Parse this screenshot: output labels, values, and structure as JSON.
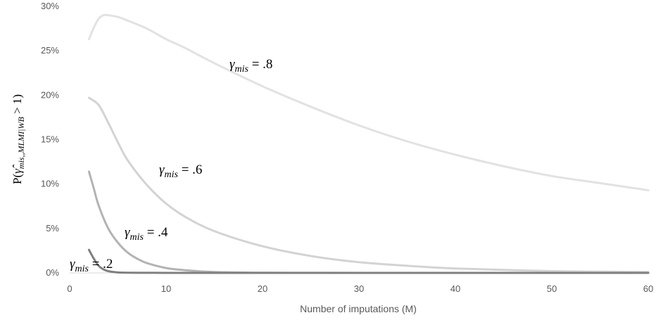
{
  "chart_data": {
    "type": "line",
    "title": "",
    "xlabel": "Number of imputations (M)",
    "ylabel": {
      "prefix": "P(",
      "symbol": "γ̂",
      "subscript": "mis,,MLMI|WB",
      "suffix": " > 1)"
    },
    "xlim": [
      0,
      60
    ],
    "ylim": [
      0,
      30
    ],
    "x_ticks": [
      "0",
      "10",
      "20",
      "30",
      "40",
      "50",
      "60"
    ],
    "y_ticks": [
      "0%",
      "5%",
      "10%",
      "15%",
      "20%",
      "25%",
      "30%"
    ],
    "grid": false,
    "legend": "none",
    "series": [
      {
        "annotation": {
          "symbol": "γ",
          "subscript": "mis",
          "text": " = .2"
        },
        "color": "#7f7f7f",
        "x": [
          2,
          2.5,
          3,
          3.5,
          4,
          5,
          6,
          8,
          10,
          15,
          20,
          30,
          40,
          50,
          60
        ],
        "y": [
          2.6,
          1.6,
          0.8,
          0.4,
          0.2,
          0.05,
          0.02,
          0.01,
          0,
          0,
          0,
          0,
          0,
          0,
          0
        ]
      },
      {
        "annotation": {
          "symbol": "γ",
          "subscript": "mis",
          "text": " = .4"
        },
        "color": "#b3b3b3",
        "x": [
          2,
          2.5,
          3,
          4,
          5,
          6,
          7,
          8,
          10,
          12,
          15,
          20,
          25,
          30,
          40,
          50,
          60
        ],
        "y": [
          11.4,
          9.5,
          7.6,
          5.0,
          3.4,
          2.3,
          1.6,
          1.1,
          0.55,
          0.3,
          0.1,
          0.02,
          0.01,
          0,
          0,
          0,
          0
        ]
      },
      {
        "annotation": {
          "symbol": "γ",
          "subscript": "mis",
          "text": " = .6"
        },
        "color": "#d3d3d3",
        "x": [
          2,
          3,
          4,
          5,
          6,
          8,
          10,
          12,
          15,
          20,
          25,
          30,
          35,
          40,
          50,
          60
        ],
        "y": [
          19.7,
          18.9,
          16.9,
          14.7,
          12.7,
          9.9,
          7.8,
          6.3,
          4.7,
          3.0,
          1.9,
          1.2,
          0.8,
          0.5,
          0.2,
          0.1
        ]
      },
      {
        "annotation": {
          "symbol": "γ",
          "subscript": "mis",
          "text": " = .8"
        },
        "color": "#e2e2e2",
        "x": [
          2,
          2.5,
          3,
          3.5,
          4,
          5,
          6,
          8,
          10,
          12,
          15,
          20,
          25,
          30,
          35,
          40,
          45,
          50,
          55,
          60
        ],
        "y": [
          26.3,
          27.6,
          28.6,
          29.0,
          29.0,
          28.8,
          28.4,
          27.5,
          26.3,
          25.3,
          23.6,
          21.0,
          18.7,
          16.6,
          14.8,
          13.3,
          12.0,
          10.9,
          10.1,
          9.3
        ]
      }
    ]
  }
}
